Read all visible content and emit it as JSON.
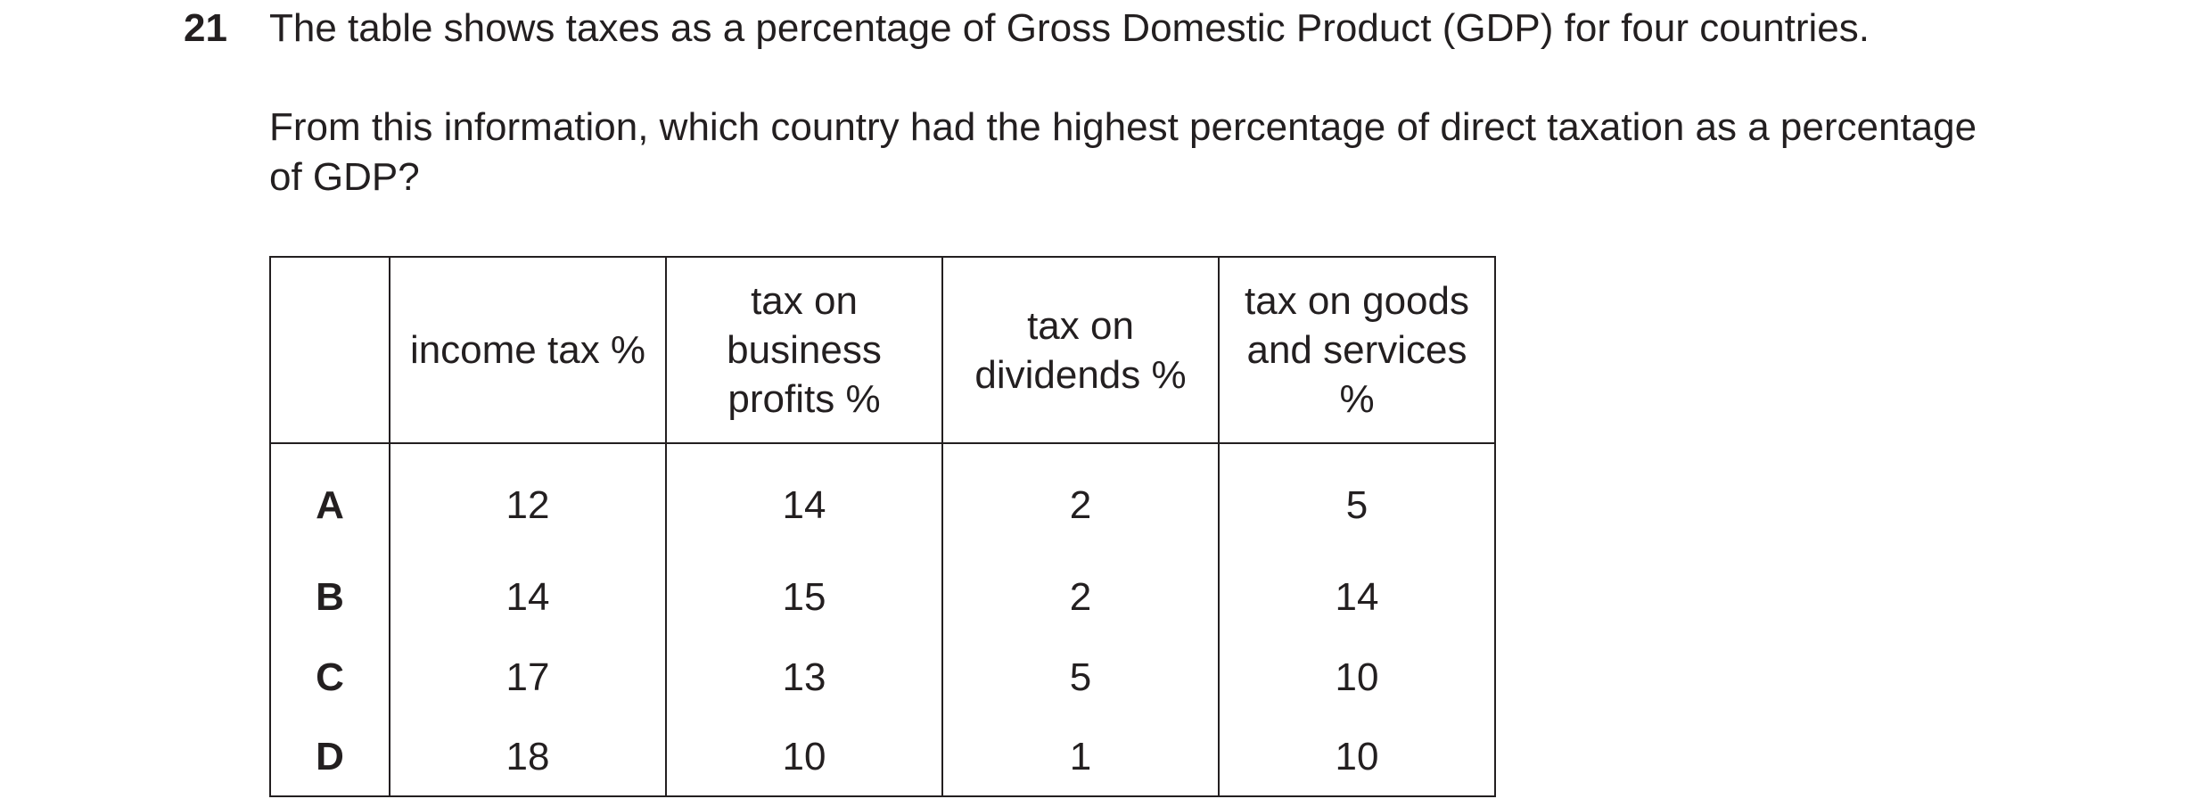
{
  "question": {
    "number": "21",
    "intro": "The table shows taxes as a percentage of Gross Domestic Product (GDP) for four countries.",
    "ask_line1": "From this information, which country had the highest percentage of direct taxation as a percentage",
    "ask_line2": "of GDP?"
  },
  "table": {
    "headers": {
      "corner": "",
      "income_tax": "income tax %",
      "business_profits": [
        "tax on",
        "business",
        "profits %"
      ],
      "dividends": [
        "tax on",
        "dividends %"
      ],
      "goods_services": [
        "tax on goods",
        "and services",
        "%"
      ]
    },
    "rows": [
      {
        "label": "A",
        "income_tax": "12",
        "business_profits": "14",
        "dividends": "2",
        "goods_services": "5"
      },
      {
        "label": "B",
        "income_tax": "14",
        "business_profits": "15",
        "dividends": "2",
        "goods_services": "14"
      },
      {
        "label": "C",
        "income_tax": "17",
        "business_profits": "13",
        "dividends": "5",
        "goods_services": "10"
      },
      {
        "label": "D",
        "income_tax": "18",
        "business_profits": "10",
        "dividends": "1",
        "goods_services": "10"
      }
    ]
  }
}
